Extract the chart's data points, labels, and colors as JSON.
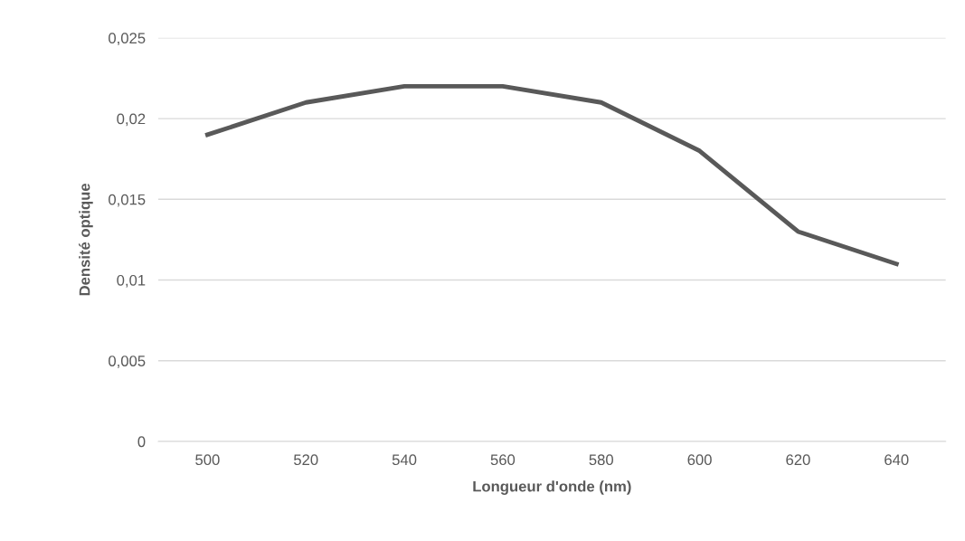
{
  "chart_data": {
    "type": "line",
    "xlabel": "Longueur d'onde (nm)",
    "ylabel": "Densité optique",
    "categories": [
      "500",
      "520",
      "540",
      "560",
      "580",
      "600",
      "620",
      "640"
    ],
    "series": [
      {
        "color": "#595959",
        "values": [
          0.019,
          0.021,
          0.022,
          0.022,
          0.021,
          0.018,
          0.013,
          0.011
        ]
      }
    ],
    "ylim": [
      0,
      0.025
    ],
    "yticks": [
      0,
      {
        "value": 0.005,
        "label": "0,005"
      },
      {
        "value": 0.01,
        "label": "0,01"
      },
      {
        "value": 0.015,
        "label": "0,015"
      },
      {
        "value": 0.02,
        "label": "0,02"
      },
      {
        "value": 0.025,
        "label": "0,025"
      }
    ],
    "grid": "y",
    "marker": "none",
    "line_style": "solid"
  }
}
